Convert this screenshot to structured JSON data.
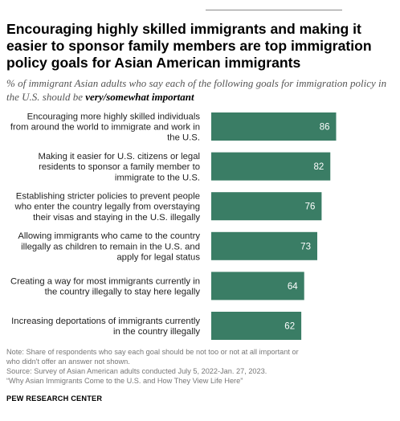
{
  "title": "Encouraging highly skilled immigrants and making it easier to sponsor family members are top immigration policy goals for Asian American immigrants",
  "subtitle": {
    "prefix": "% of immigrant Asian adults who say each of the following goals for immigration policy in the U.S. should be ",
    "emphasis": "very/somewhat important"
  },
  "chart_data": {
    "type": "bar",
    "orientation": "horizontal",
    "categories": [
      [
        "Encouraging more highly skilled individuals",
        "from around the world to immigrate and work in",
        "the U.S."
      ],
      [
        "Making it easier for U.S. citizens or legal",
        "residents to sponsor a family member to",
        "immigrate to the U.S."
      ],
      [
        "Establishing stricter policies to prevent people",
        "who enter the country legally from overstaying",
        "their visas and staying in the U.S. illegally"
      ],
      [
        "Allowing immigrants who came to the country",
        "illegally as children to remain in the U.S. and",
        "apply for legal status"
      ],
      [
        "Creating a way for most immigrants currently in",
        "the country illegally to stay here legally"
      ],
      [
        "Increasing deportations of immigrants currently",
        "in the country illegally"
      ]
    ],
    "values": [
      86,
      82,
      76,
      73,
      64,
      62
    ],
    "xlim": [
      0,
      100
    ],
    "bar_color": "#3a7d65",
    "value_label_color": "#ffffff",
    "grid": false,
    "legend": "none"
  },
  "notes": [
    "Note: Share of respondents who say each goal should be not too or not at all important or",
    "who didn't offer an answer not shown.",
    "Source: Survey of Asian American adults conducted July 5, 2022-Jan. 27, 2023.",
    "“Why Asian Immigrants Come to the U.S. and How They View Life Here”"
  ],
  "organization": "PEW RESEARCH CENTER"
}
